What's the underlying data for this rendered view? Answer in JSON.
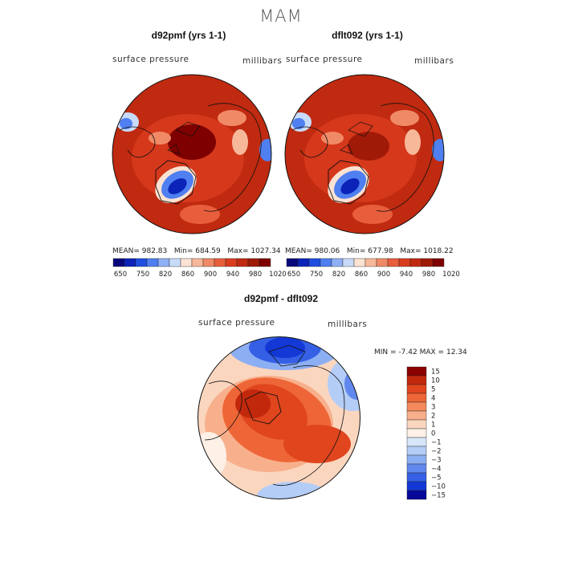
{
  "main_title": "MAM",
  "panels": [
    {
      "title": "d92pmf (yrs 1-1)",
      "variable": "surface pressure",
      "units": "millibars",
      "stats": {
        "mean_label": "MEAN=",
        "mean": "982.83",
        "min_label": "Min=",
        "min": "684.59",
        "max_label": "Max=",
        "max": "1027.34"
      }
    },
    {
      "title": "dflt092 (yrs 1-1)",
      "variable": "surface pressure",
      "units": "millibars",
      "stats": {
        "mean_label": "MEAN=",
        "mean": "980.06",
        "min_label": "Min=",
        "min": "677.98",
        "max_label": "Max=",
        "max": "1018.22"
      }
    },
    {
      "title": "d92pmf - dflt092",
      "variable": "surface pressure",
      "units": "millibars",
      "stats": {
        "min_label": "MIN =",
        "min": "-7.42",
        "max_label": "MAX =",
        "max": "12.34"
      }
    }
  ],
  "colorbar_abs": {
    "labels": [
      "650",
      "750",
      "820",
      "860",
      "900",
      "940",
      "980",
      "1020"
    ],
    "colors": [
      "#08087a",
      "#0b23b8",
      "#1f4fe0",
      "#4f7ff0",
      "#8fb0f5",
      "#c8dbf8",
      "#fbe2d2",
      "#f7b89a",
      "#f08a66",
      "#e85e3c",
      "#d93c1e",
      "#c02a10",
      "#a01a08",
      "#7e0000"
    ]
  },
  "colorbar_diff": {
    "labels": [
      "15",
      "10",
      "5",
      "4",
      "3",
      "2",
      "1",
      "0",
      "−1",
      "−2",
      "−3",
      "−4",
      "−5",
      "−10",
      "−15"
    ],
    "colors": [
      "#8b0000",
      "#c2280c",
      "#e0451e",
      "#ee6637",
      "#f48a5c",
      "#f8b08c",
      "#fbd6bf",
      "#fdf0e6",
      "#d8e6fa",
      "#b4cdf6",
      "#8caef2",
      "#6088ee",
      "#3560e6",
      "#1338d6",
      "#06089a"
    ]
  }
}
